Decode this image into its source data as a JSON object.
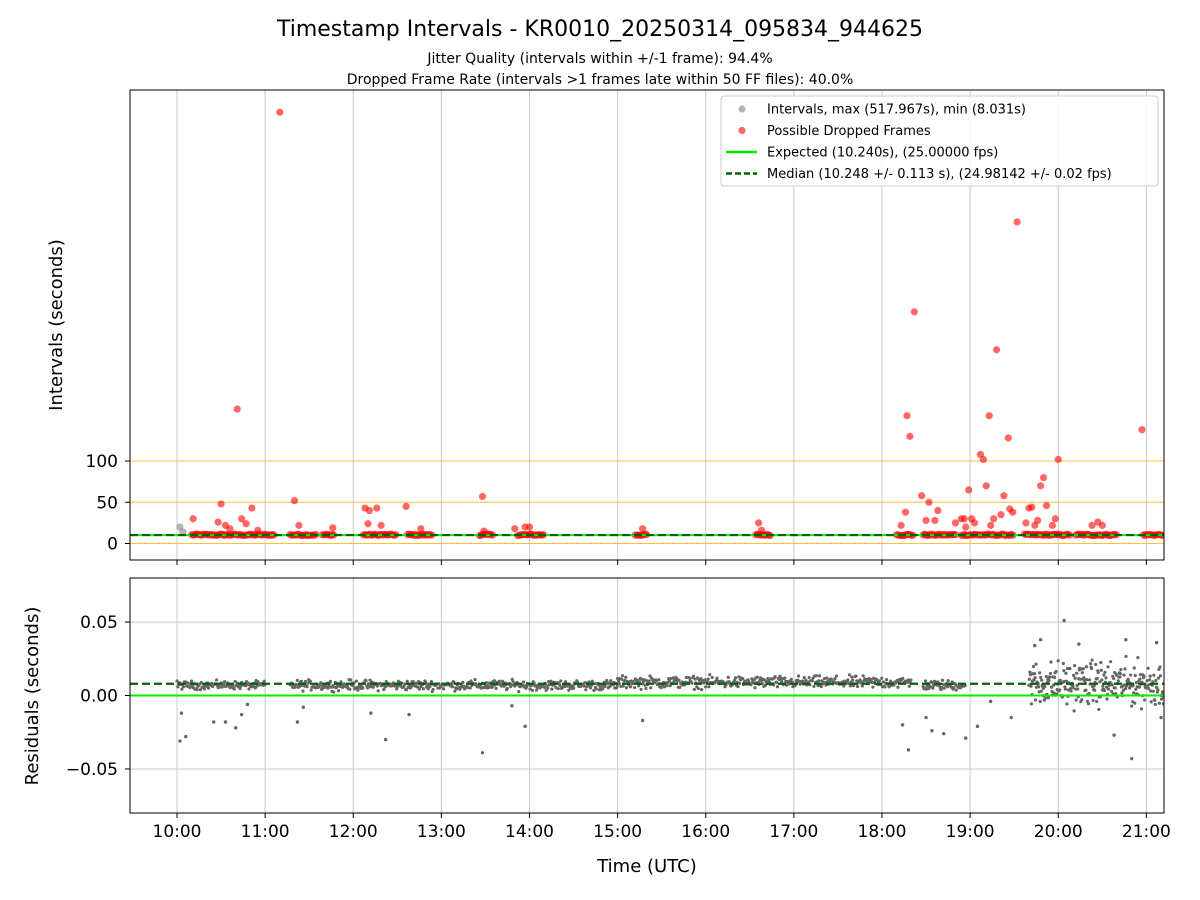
{
  "figure": {
    "title": "Timestamp Intervals - KR0010_20250314_095834_944625",
    "subtitle_1": "Jitter Quality (intervals within +/-1 frame): 94.4%",
    "subtitle_2": "Dropped Frame Rate (intervals >1 frames late within 50 FF files): 40.0%"
  },
  "colors": {
    "intervals": "#999999",
    "dropped": "#ff0000",
    "expected": "#00ee00",
    "median": "#006400",
    "threshold": "#ffc040",
    "residual": "#666666",
    "grid": "#c8c8c8"
  },
  "chart_data": [
    {
      "type": "scatter",
      "name": "intervals",
      "xlabel": "",
      "ylabel": "Intervals (seconds)",
      "x_unit": "time (UTC)",
      "xlim": [
        "09:28",
        "21:12"
      ],
      "ylim": [
        -20,
        550
      ],
      "yticks": [
        0,
        50,
        100
      ],
      "xticks": [
        "10:00",
        "11:00",
        "12:00",
        "13:00",
        "14:00",
        "15:00",
        "16:00",
        "17:00",
        "18:00",
        "19:00",
        "20:00",
        "21:00"
      ],
      "threshold_lines": [
        0,
        50,
        100
      ],
      "expected_line": 10.24,
      "median_line": 10.248,
      "grid": "x",
      "legend": {
        "placement": "top-right",
        "entries": [
          "Intervals, max (517.967s), min (8.031s)",
          "Possible Dropped Frames",
          "Expected (10.240s), (25.00000 fps)",
          "Median (10.248 +/- 0.113 s), (24.98142 +/- 0.02 fps)"
        ]
      },
      "dropped_frames": [
        {
          "x": "10:11",
          "y": 30
        },
        {
          "x": "10:28",
          "y": 26
        },
        {
          "x": "10:30",
          "y": 48
        },
        {
          "x": "10:33",
          "y": 22
        },
        {
          "x": "10:36",
          "y": 18
        },
        {
          "x": "10:41",
          "y": 163
        },
        {
          "x": "10:44",
          "y": 30
        },
        {
          "x": "10:47",
          "y": 24
        },
        {
          "x": "10:51",
          "y": 43
        },
        {
          "x": "10:55",
          "y": 16
        },
        {
          "x": "11:10",
          "y": 523
        },
        {
          "x": "11:20",
          "y": 52
        },
        {
          "x": "11:23",
          "y": 22
        },
        {
          "x": "11:46",
          "y": 19
        },
        {
          "x": "12:08",
          "y": 43
        },
        {
          "x": "12:10",
          "y": 24
        },
        {
          "x": "12:11",
          "y": 40
        },
        {
          "x": "12:16",
          "y": 43
        },
        {
          "x": "12:19",
          "y": 22
        },
        {
          "x": "12:36",
          "y": 45
        },
        {
          "x": "12:46",
          "y": 18
        },
        {
          "x": "13:28",
          "y": 57
        },
        {
          "x": "13:29",
          "y": 15
        },
        {
          "x": "13:50",
          "y": 18
        },
        {
          "x": "13:57",
          "y": 20
        },
        {
          "x": "14:00",
          "y": 20
        },
        {
          "x": "15:17",
          "y": 18
        },
        {
          "x": "16:36",
          "y": 25
        },
        {
          "x": "16:38",
          "y": 16
        },
        {
          "x": "18:13",
          "y": 22
        },
        {
          "x": "18:16",
          "y": 38
        },
        {
          "x": "18:17",
          "y": 155
        },
        {
          "x": "18:19",
          "y": 130
        },
        {
          "x": "18:22",
          "y": 281
        },
        {
          "x": "18:27",
          "y": 58
        },
        {
          "x": "18:30",
          "y": 28
        },
        {
          "x": "18:32",
          "y": 50
        },
        {
          "x": "18:36",
          "y": 28
        },
        {
          "x": "18:38",
          "y": 40
        },
        {
          "x": "18:50",
          "y": 25
        },
        {
          "x": "18:54",
          "y": 30
        },
        {
          "x": "18:56",
          "y": 30
        },
        {
          "x": "18:57",
          "y": 20
        },
        {
          "x": "18:59",
          "y": 65
        },
        {
          "x": "19:01",
          "y": 30
        },
        {
          "x": "19:03",
          "y": 25
        },
        {
          "x": "19:07",
          "y": 108
        },
        {
          "x": "19:09",
          "y": 102
        },
        {
          "x": "19:11",
          "y": 70
        },
        {
          "x": "19:13",
          "y": 155
        },
        {
          "x": "19:14",
          "y": 22
        },
        {
          "x": "19:16",
          "y": 30
        },
        {
          "x": "19:18",
          "y": 235
        },
        {
          "x": "19:21",
          "y": 35
        },
        {
          "x": "19:23",
          "y": 58
        },
        {
          "x": "19:26",
          "y": 128
        },
        {
          "x": "19:27",
          "y": 42
        },
        {
          "x": "19:29",
          "y": 38
        },
        {
          "x": "19:32",
          "y": 390
        },
        {
          "x": "19:38",
          "y": 25
        },
        {
          "x": "19:40",
          "y": 43
        },
        {
          "x": "19:42",
          "y": 44
        },
        {
          "x": "19:44",
          "y": 22
        },
        {
          "x": "19:46",
          "y": 28
        },
        {
          "x": "19:48",
          "y": 70
        },
        {
          "x": "19:50",
          "y": 80
        },
        {
          "x": "19:52",
          "y": 46
        },
        {
          "x": "19:56",
          "y": 22
        },
        {
          "x": "19:58",
          "y": 30
        },
        {
          "x": "20:00",
          "y": 102
        },
        {
          "x": "20:23",
          "y": 22
        },
        {
          "x": "20:27",
          "y": 26
        },
        {
          "x": "20:30",
          "y": 22
        },
        {
          "x": "20:57",
          "y": 138
        }
      ],
      "interval_points": [
        {
          "x": "10:02",
          "y": 20
        },
        {
          "x": "10:04",
          "y": 14
        }
      ],
      "dense_dropped_segments": [
        [
          "10:10",
          "11:07"
        ],
        [
          "11:17",
          "11:35"
        ],
        [
          "11:39",
          "11:47"
        ],
        [
          "12:07",
          "12:30"
        ],
        [
          "12:37",
          "12:54"
        ],
        [
          "13:26",
          "13:35"
        ],
        [
          "13:52",
          "14:10"
        ],
        [
          "15:12",
          "15:20"
        ],
        [
          "16:34",
          "16:45"
        ],
        [
          "18:10",
          "18:22"
        ],
        [
          "18:28",
          "18:50"
        ],
        [
          "18:54",
          "19:30"
        ],
        [
          "19:37",
          "20:08"
        ],
        [
          "20:12",
          "20:40"
        ],
        [
          "20:58",
          "21:12"
        ]
      ]
    },
    {
      "type": "scatter",
      "name": "residuals",
      "xlabel": "Time (UTC)",
      "ylabel": "Residuals (seconds)",
      "x_unit": "time (UTC)",
      "xlim": [
        "09:28",
        "21:12"
      ],
      "ylim": [
        -0.08,
        0.08
      ],
      "yticks": [
        0.05,
        0.0,
        -0.05
      ],
      "ytick_labels": [
        "0.05",
        "0.00",
        "−0.05"
      ],
      "xticks": [
        "10:00",
        "11:00",
        "12:00",
        "13:00",
        "14:00",
        "15:00",
        "16:00",
        "17:00",
        "18:00",
        "19:00",
        "20:00",
        "21:00"
      ],
      "expected_line": 0.0,
      "median_line": 0.008,
      "grid": "both",
      "bands": [
        {
          "from": "10:00",
          "to": "11:00",
          "center": 0.007,
          "spread": 0.004
        },
        {
          "from": "11:17",
          "to": "15:00",
          "center": 0.007,
          "spread": 0.005
        },
        {
          "from": "15:00",
          "to": "18:20",
          "center": 0.009,
          "spread": 0.006
        },
        {
          "from": "18:28",
          "to": "18:57",
          "center": 0.007,
          "spread": 0.005
        },
        {
          "from": "19:40",
          "to": "21:12",
          "center": 0.008,
          "spread": 0.022
        }
      ],
      "outliers": [
        {
          "x": "10:02",
          "y": -0.031
        },
        {
          "x": "10:03",
          "y": -0.012
        },
        {
          "x": "10:06",
          "y": -0.028
        },
        {
          "x": "10:25",
          "y": -0.018
        },
        {
          "x": "10:33",
          "y": -0.018
        },
        {
          "x": "10:40",
          "y": -0.022
        },
        {
          "x": "10:44",
          "y": -0.013
        },
        {
          "x": "10:48",
          "y": -0.006
        },
        {
          "x": "11:22",
          "y": -0.018
        },
        {
          "x": "11:26",
          "y": -0.008
        },
        {
          "x": "12:12",
          "y": -0.012
        },
        {
          "x": "12:22",
          "y": -0.03
        },
        {
          "x": "12:38",
          "y": -0.013
        },
        {
          "x": "13:28",
          "y": -0.039
        },
        {
          "x": "13:48",
          "y": -0.007
        },
        {
          "x": "13:57",
          "y": -0.021
        },
        {
          "x": "15:17",
          "y": -0.017
        },
        {
          "x": "18:14",
          "y": -0.02
        },
        {
          "x": "18:18",
          "y": -0.037
        },
        {
          "x": "18:30",
          "y": -0.015
        },
        {
          "x": "18:34",
          "y": -0.024
        },
        {
          "x": "18:42",
          "y": -0.026
        },
        {
          "x": "18:57",
          "y": -0.029
        },
        {
          "x": "19:05",
          "y": -0.021
        },
        {
          "x": "19:14",
          "y": -0.004
        },
        {
          "x": "19:28",
          "y": -0.015
        },
        {
          "x": "19:44",
          "y": 0.034
        },
        {
          "x": "19:48",
          "y": 0.038
        },
        {
          "x": "20:04",
          "y": 0.051
        },
        {
          "x": "20:14",
          "y": 0.035
        },
        {
          "x": "20:38",
          "y": -0.027
        },
        {
          "x": "20:46",
          "y": 0.038
        },
        {
          "x": "20:50",
          "y": -0.043
        },
        {
          "x": "21:07",
          "y": 0.036
        },
        {
          "x": "21:10",
          "y": -0.015
        }
      ]
    }
  ]
}
